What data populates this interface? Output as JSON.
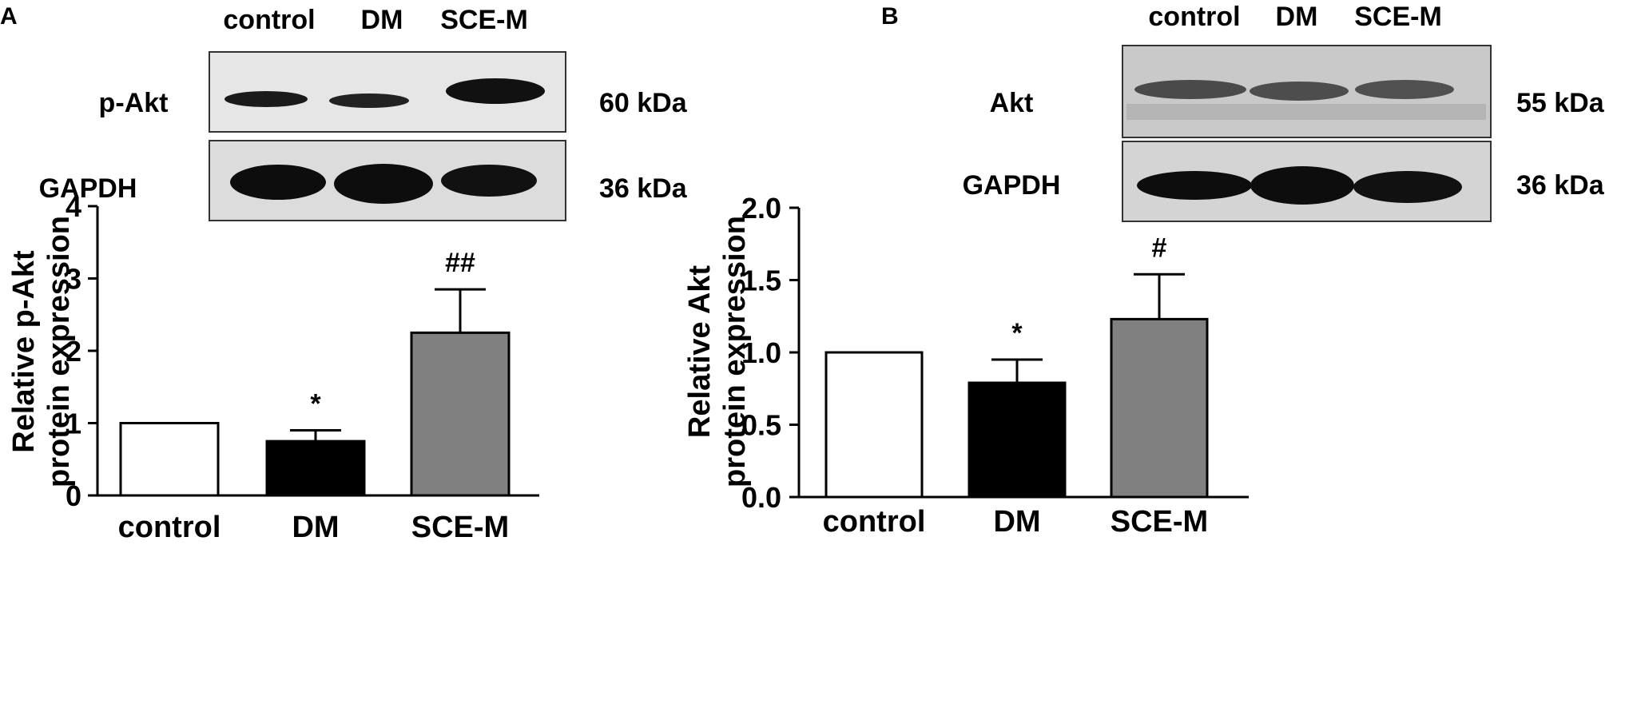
{
  "panels": [
    {
      "letter": "A",
      "blot": {
        "lanes": [
          "control",
          "DM",
          "SCE-M"
        ],
        "rows": [
          {
            "protein": "p-Akt",
            "size": "60 kDa"
          },
          {
            "protein": "GAPDH",
            "size": "36 kDa"
          }
        ]
      }
    },
    {
      "letter": "B",
      "blot": {
        "lanes": [
          "control",
          "DM",
          "SCE-M"
        ],
        "rows": [
          {
            "protein": "Akt",
            "size": "55 kDa"
          },
          {
            "protein": "GAPDH",
            "size": "36 kDa"
          }
        ]
      }
    }
  ],
  "chart_data": [
    {
      "type": "bar",
      "categories": [
        "control",
        "DM",
        "SCE-M"
      ],
      "values": [
        1.0,
        0.75,
        2.25
      ],
      "errors": [
        0,
        0.15,
        0.6
      ],
      "significance": [
        "",
        "*",
        "##"
      ],
      "bar_colors": [
        "#ffffff",
        "#000000",
        "#808080"
      ],
      "ylabel_lines": [
        "Relative p-Akt",
        "protein expression"
      ],
      "ylim": [
        0,
        4
      ],
      "yticks": [
        "0",
        "1",
        "2",
        "3",
        "4"
      ],
      "ytick_values": [
        0,
        1,
        2,
        3,
        4
      ],
      "grid": false,
      "legend": "none"
    },
    {
      "type": "bar",
      "categories": [
        "control",
        "DM",
        "SCE-M"
      ],
      "values": [
        1.0,
        0.79,
        1.23
      ],
      "errors": [
        0,
        0.16,
        0.31
      ],
      "significance": [
        "",
        "*",
        "#"
      ],
      "bar_colors": [
        "#ffffff",
        "#000000",
        "#808080"
      ],
      "ylabel_lines": [
        "Relative Akt",
        "protein expression"
      ],
      "ylim": [
        0,
        2
      ],
      "yticks": [
        "0.0",
        "0.5",
        "1.0",
        "1.5",
        "2.0"
      ],
      "ytick_values": [
        0,
        0.5,
        1.0,
        1.5,
        2.0
      ],
      "grid": false,
      "legend": "none"
    }
  ]
}
